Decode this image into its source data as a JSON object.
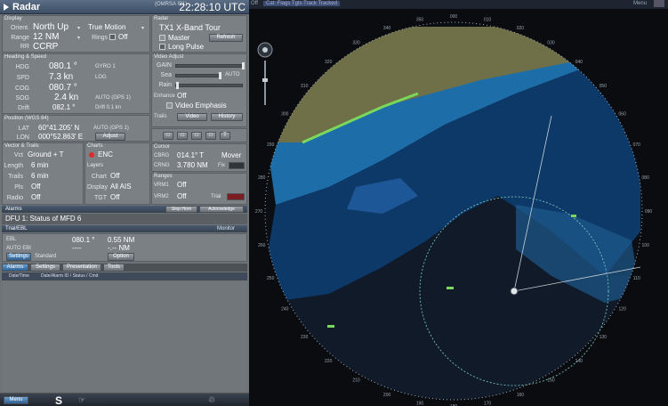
{
  "titlebar": {
    "title": "Radar",
    "clock": "22:28:10 UTC",
    "channel": "(OMRSA IS1)"
  },
  "display": {
    "head": "Display",
    "rows": [
      {
        "label": "Orient.",
        "value": "North Up"
      },
      {
        "label": "Range",
        "value": "12 NM"
      },
      {
        "label": "RR",
        "value": "CCRP"
      }
    ],
    "motion": "True Motion",
    "rings_label": "Rings",
    "rings_value": "Off"
  },
  "radar_src": {
    "head": "Radar",
    "name": "TX1 X-Band Tour",
    "master": "Master",
    "long_pulse": "Long Pulse",
    "refresh_btn": "Refresh"
  },
  "heading": {
    "head": "Heading & Speed",
    "rows": [
      {
        "label": "HDG",
        "value": "080.1 °",
        "src": "GYRO 1"
      },
      {
        "label": "SPD",
        "value": "7.3 kn",
        "src": "LOG"
      },
      {
        "label": "COG",
        "value": "080.7 °",
        "src": ""
      },
      {
        "label": "SOG",
        "value": "2.4 kn",
        "src": "AUTO (GPS 1)"
      },
      {
        "label": "Drift",
        "value": "082.1 °",
        "src": "Drift 0.1 kn"
      }
    ]
  },
  "video": {
    "head": "Video Adjust",
    "rows": [
      "GAIN",
      "Sea",
      "Rain"
    ],
    "auto_label": "AUTO",
    "enhance_label": "Enhance",
    "enhance_value": "Off",
    "video_emphasis": "Video Emphasis",
    "trails_label": "Trails",
    "trails_btns": [
      "Video",
      "History"
    ]
  },
  "position": {
    "head": "Position (WGS 84)",
    "rows": [
      {
        "label": "LAT",
        "value": "60°41.205' N",
        "src": "AUTO (GPS 1)"
      },
      {
        "label": "LON",
        "value": "000°52.863' E",
        "src": "Adjust"
      }
    ]
  },
  "vector": {
    "head": "Vector & Trails",
    "rows": [
      {
        "label": "Vct",
        "value": "Ground + T"
      },
      {
        "label": "Length",
        "value": "6 min"
      },
      {
        "label": "Trails",
        "value": "6 min"
      },
      {
        "label": "Pls",
        "value": "Off"
      },
      {
        "label": "Radio",
        "value": "Off"
      }
    ]
  },
  "charts": {
    "head": "Charts",
    "enc": "ENC",
    "sub": "Layers",
    "rows": [
      {
        "label": "Chart",
        "value": "Off"
      },
      {
        "label": "Display",
        "value": "All AIS"
      },
      {
        "label": "TGT",
        "value": "Off"
      }
    ]
  },
  "cursor": {
    "head": "Cursor",
    "brg_label": "CBRG",
    "brg": "014.1° T",
    "mover": "Mover",
    "rng_label": "CRNG",
    "rng": "3.780 NM",
    "fix": "Fix"
  },
  "ranges": {
    "head": "Ranges",
    "rows": [
      {
        "label": "VRM1",
        "value": "Off"
      },
      {
        "label": "VRM2",
        "value": "Off"
      }
    ],
    "trial": "Trial"
  },
  "alarms": {
    "head": "Alarms",
    "stop_horn": "Stop Horn",
    "acknowledge": "Acknowledge",
    "message": "DFU 1: Status of MFD 6"
  },
  "ebl": {
    "head": "Trial/EBL",
    "monitor": "Monitor",
    "row1_label": "EBL",
    "row1_val": "080.1 °",
    "row1_val2": "0.55 NM",
    "row2_label": "AUTO EBI",
    "row2_val": "----",
    "row2_val2": "-.-- NM",
    "settings": "Settings",
    "standard": "Standard",
    "option": "Option"
  },
  "tabs": [
    "Alarms",
    "Settings",
    "Presentation",
    "Tools"
  ],
  "alarmlist": {
    "cols": [
      "Date/Time",
      "Date/Alarm ID / Status / Cmd"
    ]
  },
  "statusbar": {
    "menu": "Menu",
    "s_label": "S"
  },
  "radar_head": {
    "left": "Off",
    "hdr": "Cat: Flags  Tgts  Track  Tracked",
    "right": "Menu"
  },
  "bearing_labels": [
    "000",
    "010",
    "020",
    "030",
    "040",
    "050",
    "060",
    "070",
    "080",
    "090",
    "100",
    "110",
    "120",
    "130",
    "140",
    "150",
    "160",
    "170",
    "180",
    "190",
    "200",
    "210",
    "220",
    "230",
    "240",
    "250",
    "260",
    "270",
    "280",
    "290",
    "300",
    "310",
    "320",
    "330",
    "340",
    "350"
  ],
  "colors": {
    "land": "#707048",
    "shallow": "#1d6ea8",
    "deep": "#0d3968",
    "echo": "#2a6db8",
    "accent": "#7bd85a"
  }
}
